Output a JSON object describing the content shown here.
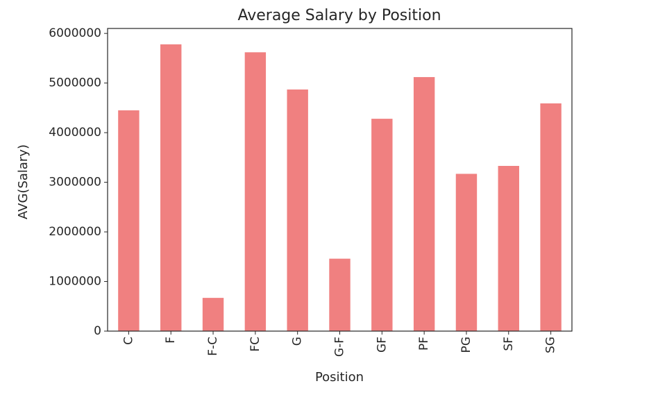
{
  "chart_data": {
    "type": "bar",
    "title": "Average Salary by Position",
    "xlabel": "Position",
    "ylabel": "AVG(Salary)",
    "categories": [
      "C",
      "F",
      "F-C",
      "FC",
      "G",
      "G-F",
      "GF",
      "PF",
      "PG",
      "SF",
      "SG"
    ],
    "values": [
      4450000,
      5780000,
      670000,
      5620000,
      4870000,
      1460000,
      4280000,
      5120000,
      3170000,
      3330000,
      4590000
    ],
    "ylim": [
      0,
      6100000
    ],
    "yticks": [
      0,
      1000000,
      2000000,
      3000000,
      4000000,
      5000000,
      6000000
    ],
    "ytick_labels": [
      "0",
      "1000000",
      "2000000",
      "3000000",
      "4000000",
      "5000000",
      "6000000"
    ],
    "bar_color": "#f08080",
    "grid": false,
    "legend": "none"
  }
}
